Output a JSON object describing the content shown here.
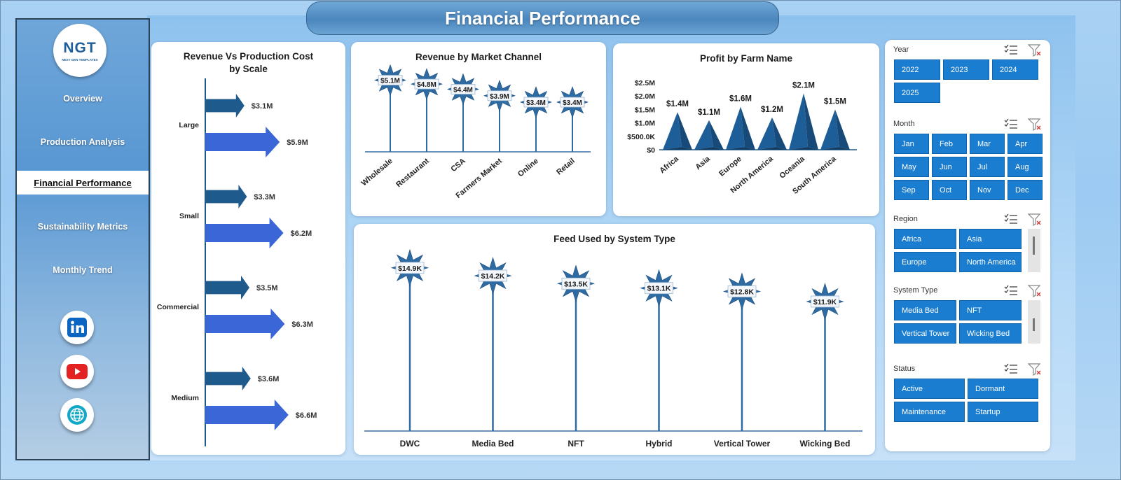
{
  "page_title": "Financial Performance",
  "logo": {
    "mark": "NGT",
    "tagline": "NEXT GEN TEMPLATES"
  },
  "nav": [
    {
      "label": "Overview",
      "active": false
    },
    {
      "label": "Production Analysis",
      "active": false
    },
    {
      "label": "Financial Performance",
      "active": true
    },
    {
      "label": "Sustainability Metrics",
      "active": false
    },
    {
      "label": "Monthly Trend",
      "active": false
    }
  ],
  "social": [
    "linkedin-icon",
    "youtube-icon",
    "website-icon"
  ],
  "colors": {
    "dark_bar": "#1f5a8c",
    "light_bar": "#3b66d8",
    "star": "#2f6ba3",
    "slicer": "#1a7dd0"
  },
  "chart_data": [
    {
      "id": "revenue_vs_cost",
      "type": "bar",
      "title": "Revenue Vs Production Cost by Scale",
      "categories": [
        "Large",
        "Small",
        "Commercial",
        "Medium"
      ],
      "series": [
        {
          "values": [
            3.1,
            3.3,
            3.5,
            3.6
          ],
          "labels": [
            "$3.1M",
            "$3.3M",
            "$3.5M",
            "$3.6M"
          ]
        },
        {
          "values": [
            5.9,
            6.2,
            6.3,
            6.6
          ],
          "labels": [
            "$5.9M",
            "$6.2M",
            "$6.3M",
            "$6.6M"
          ]
        }
      ]
    },
    {
      "id": "revenue_by_channel",
      "type": "bar",
      "title": "Revenue by Market Channel",
      "categories": [
        "Wholesale",
        "Restaurant",
        "CSA",
        "Farmers Market",
        "Online",
        "Retail"
      ],
      "values": [
        5.1,
        4.8,
        4.4,
        3.9,
        3.4,
        3.4
      ],
      "labels": [
        "$5.1M",
        "$4.8M",
        "$4.4M",
        "$3.9M",
        "$3.4M",
        "$3.4M"
      ]
    },
    {
      "id": "profit_by_farm",
      "type": "bar",
      "title": "Profit by Farm Name",
      "categories": [
        "Africa",
        "Asia",
        "Europe",
        "North America",
        "Oceania",
        "South America"
      ],
      "values": [
        1.4,
        1.1,
        1.6,
        1.2,
        2.1,
        1.5
      ],
      "labels": [
        "$1.4M",
        "$1.1M",
        "$1.6M",
        "$1.2M",
        "$2.1M",
        "$1.5M"
      ],
      "y_ticks": [
        "$0",
        "$500.0K",
        "$1.0M",
        "$1.5M",
        "$2.0M",
        "$2.5M"
      ],
      "ylim": [
        0,
        2.5
      ]
    },
    {
      "id": "feed_by_system",
      "type": "bar",
      "title": "Feed Used by System Type",
      "categories": [
        "DWC",
        "Media Bed",
        "NFT",
        "Hybrid",
        "Vertical Tower",
        "Wicking Bed"
      ],
      "values": [
        14.9,
        14.2,
        13.5,
        13.1,
        12.8,
        11.9
      ],
      "labels": [
        "$14.9K",
        "$14.2K",
        "$13.5K",
        "$13.1K",
        "$12.8K",
        "$11.9K"
      ]
    }
  ],
  "slicers": [
    {
      "name": "Year",
      "options": [
        "2022",
        "2023",
        "2024",
        "2025"
      ]
    },
    {
      "name": "Month",
      "options": [
        "Jan",
        "Feb",
        "Mar",
        "Apr",
        "May",
        "Jun",
        "Jul",
        "Aug",
        "Sep",
        "Oct",
        "Nov",
        "Dec"
      ]
    },
    {
      "name": "Region",
      "options": [
        "Africa",
        "Asia",
        "Europe",
        "North America"
      ]
    },
    {
      "name": "System Type",
      "options": [
        "Media Bed",
        "NFT",
        "Vertical Tower",
        "Wicking Bed"
      ]
    },
    {
      "name": "Status",
      "options": [
        "Active",
        "Dormant",
        "Maintenance",
        "Startup"
      ]
    }
  ]
}
